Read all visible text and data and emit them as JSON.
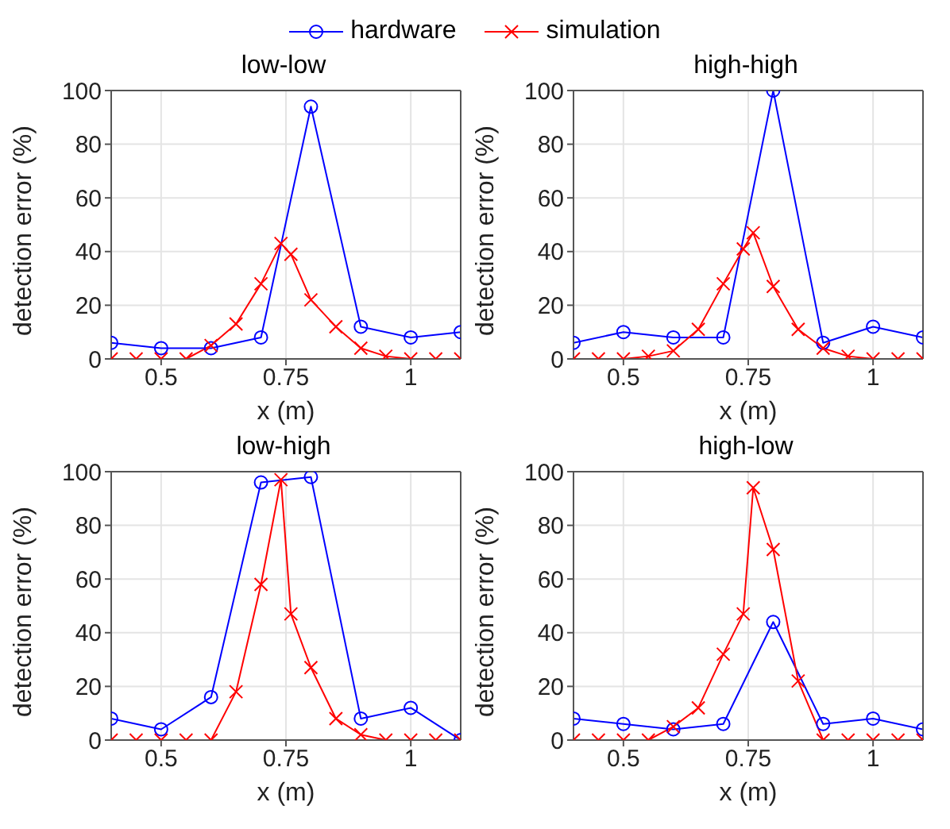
{
  "chart_data": [
    {
      "type": "line",
      "title": "low-low",
      "xlabel": "x (m)",
      "ylabel": "detection error (%)",
      "xlim": [
        0.4,
        1.1
      ],
      "xticks": [
        0.5,
        0.75,
        1
      ],
      "ylim": [
        0,
        100
      ],
      "yticks": [
        0,
        20,
        40,
        60,
        80,
        100
      ],
      "grid": true,
      "legend": "top",
      "series": [
        {
          "name": "hardware",
          "color": "#0000ff",
          "marker": "circle",
          "x": [
            0.4,
            0.5,
            0.6,
            0.7,
            0.8,
            0.9,
            1.0,
            1.1
          ],
          "values": [
            6,
            4,
            4,
            8,
            94,
            12,
            8,
            10
          ]
        },
        {
          "name": "simulation",
          "color": "#ff0000",
          "marker": "cross",
          "x": [
            0.4,
            0.45,
            0.5,
            0.55,
            0.6,
            0.65,
            0.7,
            0.74,
            0.76,
            0.8,
            0.85,
            0.9,
            0.95,
            1.0,
            1.05,
            1.1
          ],
          "values": [
            0,
            0,
            0,
            0,
            5,
            13,
            28,
            43,
            39,
            22,
            12,
            4,
            1,
            0,
            0,
            0
          ]
        }
      ]
    },
    {
      "type": "line",
      "title": "high-high",
      "xlabel": "x (m)",
      "ylabel": "detection error (%)",
      "xlim": [
        0.4,
        1.1
      ],
      "xticks": [
        0.5,
        0.75,
        1
      ],
      "ylim": [
        0,
        100
      ],
      "yticks": [
        0,
        20,
        40,
        60,
        80,
        100
      ],
      "grid": true,
      "series": [
        {
          "color": "#0000ff",
          "marker": "circle",
          "x": [
            0.4,
            0.5,
            0.6,
            0.7,
            0.8,
            0.9,
            1.0,
            1.1
          ],
          "values": [
            6,
            10,
            8,
            8,
            100,
            6,
            12,
            8
          ]
        },
        {
          "color": "#ff0000",
          "marker": "cross",
          "x": [
            0.4,
            0.45,
            0.5,
            0.55,
            0.6,
            0.65,
            0.7,
            0.74,
            0.76,
            0.8,
            0.85,
            0.9,
            0.95,
            1.0,
            1.05,
            1.1
          ],
          "values": [
            0,
            0,
            0,
            1,
            3,
            11,
            28,
            41,
            47,
            27,
            11,
            4,
            1,
            0,
            0,
            0
          ]
        }
      ]
    },
    {
      "type": "line",
      "title": "low-high",
      "xlabel": "x (m)",
      "ylabel": "detection error (%)",
      "xlim": [
        0.4,
        1.1
      ],
      "xticks": [
        0.5,
        0.75,
        1
      ],
      "ylim": [
        0,
        100
      ],
      "yticks": [
        0,
        20,
        40,
        60,
        80,
        100
      ],
      "grid": true,
      "series": [
        {
          "color": "#0000ff",
          "marker": "circle",
          "x": [
            0.4,
            0.5,
            0.6,
            0.7,
            0.8,
            0.9,
            1.0,
            1.1
          ],
          "values": [
            8,
            4,
            16,
            96,
            98,
            8,
            12,
            0
          ]
        },
        {
          "color": "#ff0000",
          "marker": "cross",
          "x": [
            0.4,
            0.45,
            0.5,
            0.55,
            0.6,
            0.65,
            0.7,
            0.74,
            0.76,
            0.8,
            0.85,
            0.9,
            0.95,
            1.0,
            1.05,
            1.1
          ],
          "values": [
            0,
            0,
            0,
            0,
            0,
            18,
            58,
            97,
            47,
            27,
            8,
            2,
            0,
            0,
            0,
            0
          ]
        }
      ]
    },
    {
      "type": "line",
      "title": "high-low",
      "xlabel": "x (m)",
      "ylabel": "detection error (%)",
      "xlim": [
        0.4,
        1.1
      ],
      "xticks": [
        0.5,
        0.75,
        1
      ],
      "ylim": [
        0,
        100
      ],
      "yticks": [
        0,
        20,
        40,
        60,
        80,
        100
      ],
      "grid": true,
      "series": [
        {
          "color": "#0000ff",
          "marker": "circle",
          "x": [
            0.4,
            0.5,
            0.6,
            0.7,
            0.8,
            0.9,
            1.0,
            1.1
          ],
          "values": [
            8,
            6,
            4,
            6,
            44,
            6,
            8,
            4
          ]
        },
        {
          "color": "#ff0000",
          "marker": "cross",
          "x": [
            0.4,
            0.45,
            0.5,
            0.55,
            0.6,
            0.65,
            0.7,
            0.74,
            0.76,
            0.8,
            0.85,
            0.9,
            0.95,
            1.0,
            1.05,
            1.1
          ],
          "values": [
            0,
            0,
            0,
            0,
            5,
            12,
            32,
            47,
            94,
            71,
            22,
            0,
            0,
            0,
            0,
            0
          ]
        }
      ]
    }
  ]
}
